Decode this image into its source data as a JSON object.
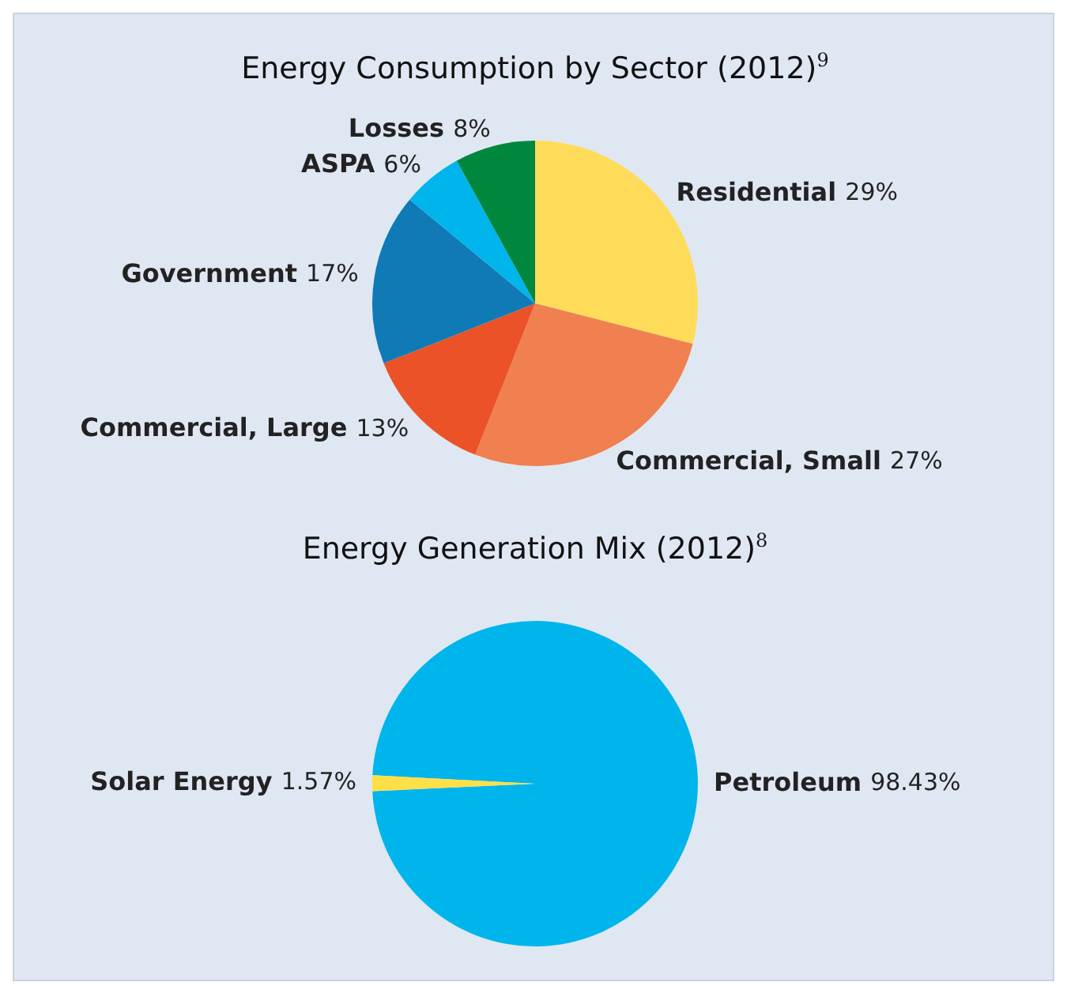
{
  "chart_data": [
    {
      "type": "pie",
      "title": "Energy Consumption by Sector (2012)$^{9}$",
      "categories": [
        "Residential",
        "Commercial, Small",
        "Commercial, Large",
        "Government",
        "ASPA",
        "Losses"
      ],
      "values": [
        29,
        27,
        13,
        17,
        6,
        8
      ],
      "value_labels": [
        "29%",
        "27%",
        "13%",
        "17%",
        "6%",
        "8%"
      ],
      "colors": [
        "#fedc5a",
        "#f08050",
        "#ec5228",
        "#0f7ab5",
        "#00b5ec",
        "#00873e"
      ],
      "legend": false
    },
    {
      "type": "pie",
      "title": "Energy Generation Mix (2012)$^{8}$",
      "categories": [
        "Petroleum",
        "Solar Energy"
      ],
      "values": [
        98.43,
        1.57
      ],
      "value_labels": [
        "98.43%",
        "1.57%"
      ],
      "colors": [
        "#00b5ec",
        "#fde047"
      ],
      "legend": false
    }
  ]
}
